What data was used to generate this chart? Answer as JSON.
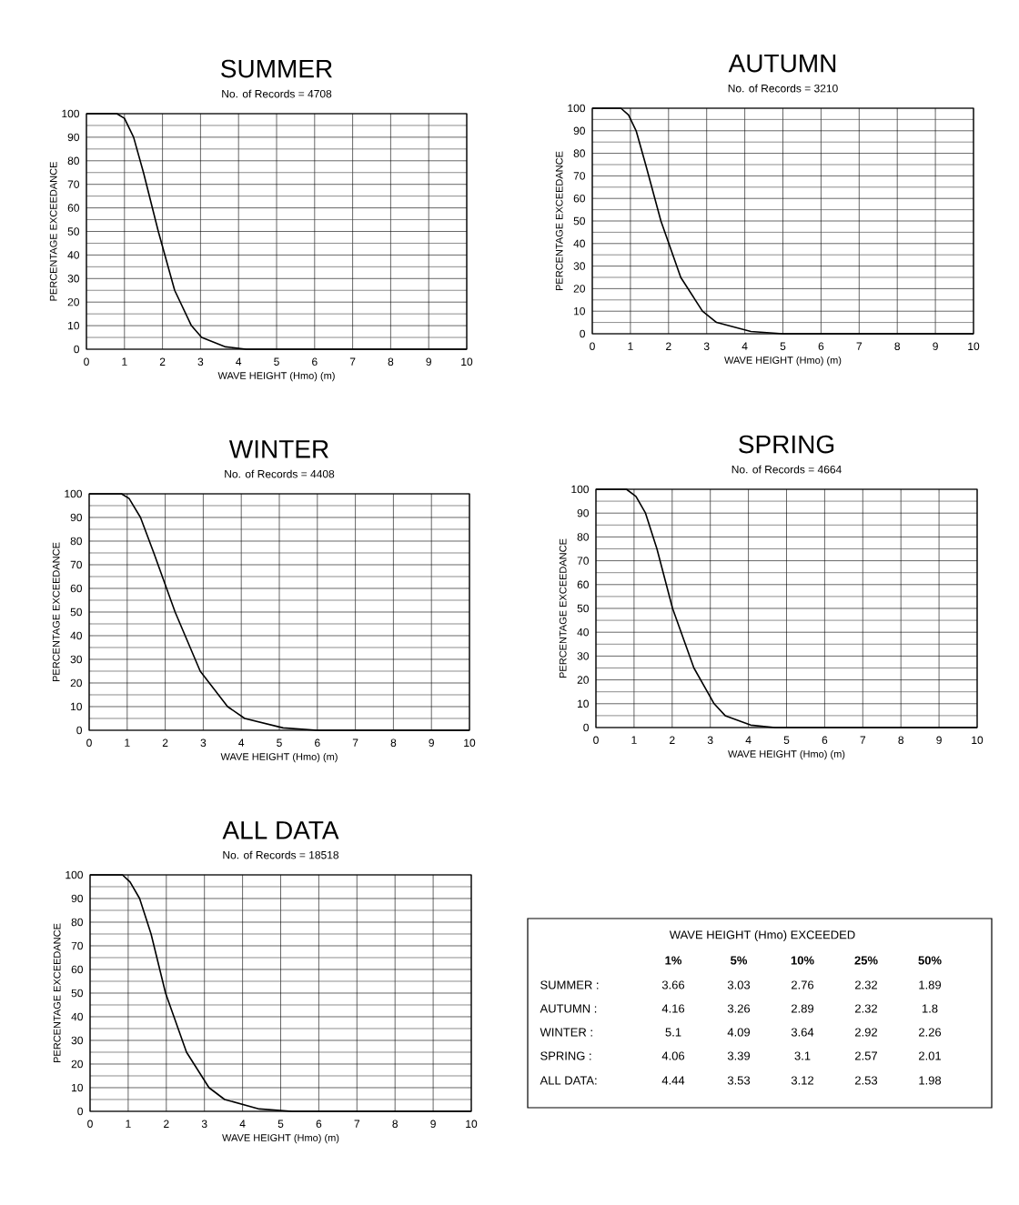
{
  "chart_data": [
    {
      "type": "line",
      "title": "SUMMER",
      "subtitle": "No. of Records = 4708",
      "xlabel": "WAVE HEIGHT (Hmo) (m)",
      "ylabel": "PERCENTAGE EXCEEDANCE",
      "color": "#000000",
      "x": [
        0,
        0.8,
        1.0,
        1.24,
        1.5,
        1.89,
        2.32,
        2.76,
        3.03,
        3.66,
        4.2,
        10
      ],
      "values": [
        100,
        100,
        98,
        90,
        75,
        50,
        25,
        10,
        5,
        1,
        0,
        0
      ],
      "xlim": [
        0,
        10
      ],
      "ylim": [
        0,
        100
      ],
      "xticks": [
        0,
        1,
        2,
        3,
        4,
        5,
        6,
        7,
        8,
        9,
        10
      ],
      "yticks": [
        0,
        10,
        20,
        30,
        40,
        50,
        60,
        70,
        80,
        90,
        100
      ],
      "grid": true
    },
    {
      "type": "line",
      "title": "AUTUMN",
      "subtitle": "No. of Records = 3210",
      "xlabel": "WAVE HEIGHT (Hmo) (m)",
      "ylabel": "PERCENTAGE EXCEEDANCE",
      "color": "#000000",
      "x": [
        0,
        0.75,
        0.95,
        1.15,
        1.4,
        1.8,
        2.32,
        2.89,
        3.26,
        4.16,
        5.0,
        10
      ],
      "values": [
        100,
        100,
        97,
        90,
        75,
        50,
        25,
        10,
        5,
        1,
        0,
        0
      ],
      "xlim": [
        0,
        10
      ],
      "ylim": [
        0,
        100
      ],
      "xticks": [
        0,
        1,
        2,
        3,
        4,
        5,
        6,
        7,
        8,
        9,
        10
      ],
      "yticks": [
        0,
        10,
        20,
        30,
        40,
        50,
        60,
        70,
        80,
        90,
        100
      ],
      "grid": true
    },
    {
      "type": "line",
      "title": "WINTER",
      "subtitle": "No. of Records = 4408",
      "xlabel": "WAVE HEIGHT (Hmo) (m)",
      "ylabel": "PERCENTAGE EXCEEDANCE",
      "color": "#000000",
      "x": [
        0,
        0.85,
        1.05,
        1.35,
        1.7,
        2.26,
        2.92,
        3.64,
        4.09,
        5.1,
        6.0,
        10
      ],
      "values": [
        100,
        100,
        98,
        90,
        75,
        50,
        25,
        10,
        5,
        1,
        0,
        0
      ],
      "xlim": [
        0,
        10
      ],
      "ylim": [
        0,
        100
      ],
      "xticks": [
        0,
        1,
        2,
        3,
        4,
        5,
        6,
        7,
        8,
        9,
        10
      ],
      "yticks": [
        0,
        10,
        20,
        30,
        40,
        50,
        60,
        70,
        80,
        90,
        100
      ],
      "grid": true
    },
    {
      "type": "line",
      "title": "SPRING",
      "subtitle": "No. of Records = 4664",
      "xlabel": "WAVE HEIGHT (Hmo) (m)",
      "ylabel": "PERCENTAGE EXCEEDANCE",
      "color": "#000000",
      "x": [
        0,
        0.8,
        1.05,
        1.3,
        1.6,
        2.01,
        2.57,
        3.1,
        3.39,
        4.06,
        4.7,
        10
      ],
      "values": [
        100,
        100,
        97,
        90,
        75,
        50,
        25,
        10,
        5,
        1,
        0,
        0
      ],
      "xlim": [
        0,
        10
      ],
      "ylim": [
        0,
        100
      ],
      "xticks": [
        0,
        1,
        2,
        3,
        4,
        5,
        6,
        7,
        8,
        9,
        10
      ],
      "yticks": [
        0,
        10,
        20,
        30,
        40,
        50,
        60,
        70,
        80,
        90,
        100
      ],
      "grid": true
    },
    {
      "type": "line",
      "title": "ALL DATA",
      "subtitle": "No. of Records = 18518",
      "xlabel": "WAVE HEIGHT (Hmo) (m)",
      "ylabel": "PERCENTAGE EXCEEDANCE",
      "color": "#000000",
      "x": [
        0,
        0.85,
        1.05,
        1.3,
        1.6,
        1.98,
        2.53,
        3.12,
        3.53,
        4.44,
        5.3,
        10
      ],
      "values": [
        100,
        100,
        97,
        90,
        75,
        50,
        25,
        10,
        5,
        1,
        0,
        0
      ],
      "xlim": [
        0,
        10
      ],
      "ylim": [
        0,
        100
      ],
      "xticks": [
        0,
        1,
        2,
        3,
        4,
        5,
        6,
        7,
        8,
        9,
        10
      ],
      "yticks": [
        0,
        10,
        20,
        30,
        40,
        50,
        60,
        70,
        80,
        90,
        100
      ],
      "grid": true
    },
    {
      "type": "other",
      "title": "WAVE HEIGHT (Hmo) EXCEEDED",
      "data_labels": true,
      "categories": [
        "1%",
        "5%",
        "10%",
        "25%",
        "50%"
      ],
      "series": [
        {
          "name": "SUMMER :",
          "values": [
            3.66,
            3.03,
            2.76,
            2.32,
            1.89
          ]
        },
        {
          "name": "AUTUMN :",
          "values": [
            4.16,
            3.26,
            2.89,
            2.32,
            1.8
          ]
        },
        {
          "name": "WINTER :",
          "values": [
            5.1,
            4.09,
            3.64,
            2.92,
            2.26
          ]
        },
        {
          "name": "SPRING :",
          "values": [
            4.06,
            3.39,
            3.1,
            2.57,
            2.01
          ]
        },
        {
          "name": "ALL DATA:",
          "values": [
            4.44,
            3.53,
            3.12,
            2.53,
            1.98
          ]
        }
      ]
    }
  ]
}
